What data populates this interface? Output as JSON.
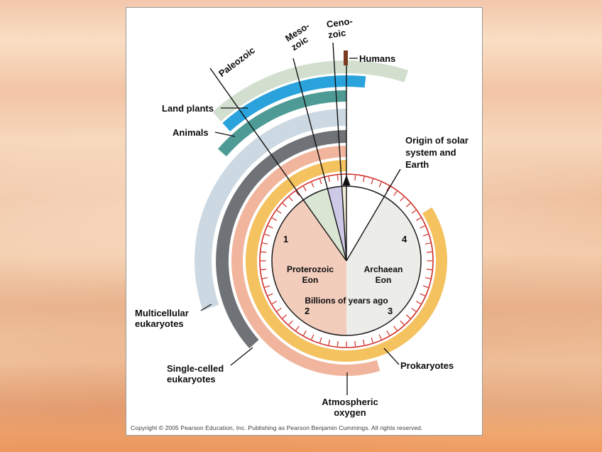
{
  "diagram": {
    "title_labels": {
      "paleozoic": "Paleozoic",
      "mesozoic_line1": "Meso-",
      "mesozoic_line2": "zoic",
      "cenozoic_line1": "Ceno-",
      "cenozoic_line2": "zoic",
      "humans": "Humans",
      "origin_line1": "Origin of solar",
      "origin_line2": "system and",
      "origin_line3": "Earth",
      "land_plants": "Land plants",
      "animals": "Animals",
      "multicellular_line1": "Multicellular",
      "multicellular_line2": "eukaryotes",
      "single_celled_line1": "Single-celled",
      "single_celled_line2": "eukaryotes",
      "atmospheric_line1": "Atmospheric",
      "atmospheric_line2": "oxygen",
      "prokaryotes": "Prokaryotes"
    },
    "clock_face": {
      "numeral_1": "1",
      "numeral_2": "2",
      "numeral_3": "3",
      "numeral_4": "4",
      "left_eon_line1": "Proterozoic",
      "left_eon_line2": "Eon",
      "right_eon_line1": "Archaean",
      "right_eon_line2": "Eon",
      "units_label": "Billions of years ago"
    },
    "clock_colors": {
      "tick_ring": "#cf2e27",
      "outline": "#1d1d1d",
      "humans_marker": "#7c3a20"
    },
    "bands": [
      {
        "name": "outer-pale-band",
        "color": "#d2dfcf",
        "r_in": 264,
        "r_out": 282,
        "start": 318,
        "end": 378
      },
      {
        "name": "land-plants-band",
        "color": "#2aa3dc",
        "r_in": 245,
        "r_out": 261,
        "start": 318,
        "end": 366
      },
      {
        "name": "animals-band",
        "color": "#4e9b96",
        "r_in": 224,
        "r_out": 240,
        "start": 311,
        "end": 360
      },
      {
        "name": "multicellular-eukaryotes-band",
        "color": "#cdd9e2",
        "r_in": 190,
        "r_out": 214,
        "start": 251,
        "end": 360
      },
      {
        "name": "single-celled-eukaryotes-band",
        "color": "#6f7276",
        "r_in": 166,
        "r_out": 184,
        "start": 228,
        "end": 360
      },
      {
        "name": "atmospheric-oxygen-band",
        "color": "#f1b59e",
        "r_in": 146,
        "r_out": 162,
        "start": 163,
        "end": 360
      },
      {
        "name": "prokaryotes-band",
        "color": "#f4c25e",
        "r_in": 126,
        "r_out": 142,
        "start": 58,
        "end": 360
      }
    ],
    "sectors": [
      {
        "name": "proterozoic-eon-sector",
        "color": "#f2cdbc",
        "start": 180,
        "end": 325
      },
      {
        "name": "paleozoic-wedge",
        "color": "#d9e6d3",
        "start": 325,
        "end": 345
      },
      {
        "name": "mesozoic-wedge",
        "color": "#cfc9e8",
        "start": 345,
        "end": 356
      },
      {
        "name": "cenozoic-wedge",
        "color": "#f1ebd8",
        "start": 356,
        "end": 360
      },
      {
        "name": "archaean-eon-sector",
        "color": "#ecece8",
        "start": 30,
        "end": 180
      }
    ]
  },
  "footer": {
    "copyright": "Copyright © 2005 Pearson Education, Inc. Publishing as Pearson Benjamin Cummings. All rights reserved."
  }
}
